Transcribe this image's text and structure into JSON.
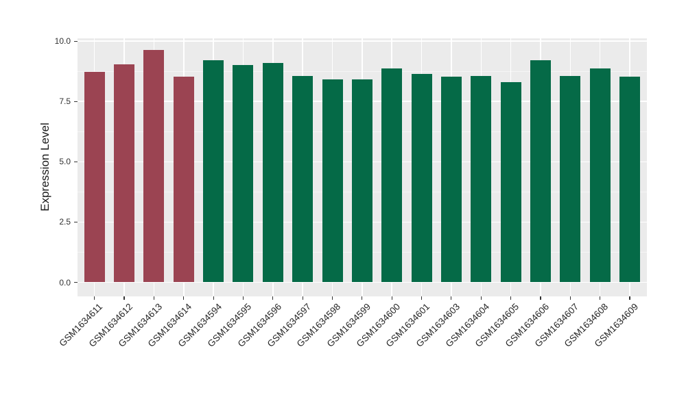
{
  "chart_data": {
    "type": "bar",
    "title": "",
    "xlabel": "",
    "ylabel": "Expression Level",
    "ylim": [
      0,
      10.1
    ],
    "yticks": [
      0.0,
      2.5,
      5.0,
      7.5,
      10.0
    ],
    "ytick_labels": [
      "0.0",
      "2.5",
      "5.0",
      "7.5",
      "10.0"
    ],
    "minor_yticks": [
      1.25,
      3.75,
      6.25,
      8.75
    ],
    "grid": "major-and-minor, white on gray panel",
    "legend_position": "none",
    "categories": [
      "GSM1634611",
      "GSM1634612",
      "GSM1634613",
      "GSM1634614",
      "GSM1634594",
      "GSM1634595",
      "GSM1634596",
      "GSM1634597",
      "GSM1634598",
      "GSM1634599",
      "GSM1634600",
      "GSM1634601",
      "GSM1634603",
      "GSM1634604",
      "GSM1634605",
      "GSM1634606",
      "GSM1634607",
      "GSM1634608",
      "GSM1634609"
    ],
    "values": [
      8.74,
      9.05,
      9.62,
      8.54,
      9.21,
      9.02,
      9.1,
      8.56,
      8.41,
      8.41,
      8.87,
      8.64,
      8.54,
      8.55,
      8.3,
      9.2,
      8.56,
      8.87,
      8.54
    ],
    "groups": [
      "red",
      "red",
      "red",
      "red",
      "green",
      "green",
      "green",
      "green",
      "green",
      "green",
      "green",
      "green",
      "green",
      "green",
      "green",
      "green",
      "green",
      "green",
      "green"
    ],
    "colors": {
      "red": "#9B4452",
      "green": "#056A47"
    },
    "panel_background": "#EBEBEB",
    "grid_color": "#FFFFFF",
    "axis_text_color": "#303030"
  }
}
